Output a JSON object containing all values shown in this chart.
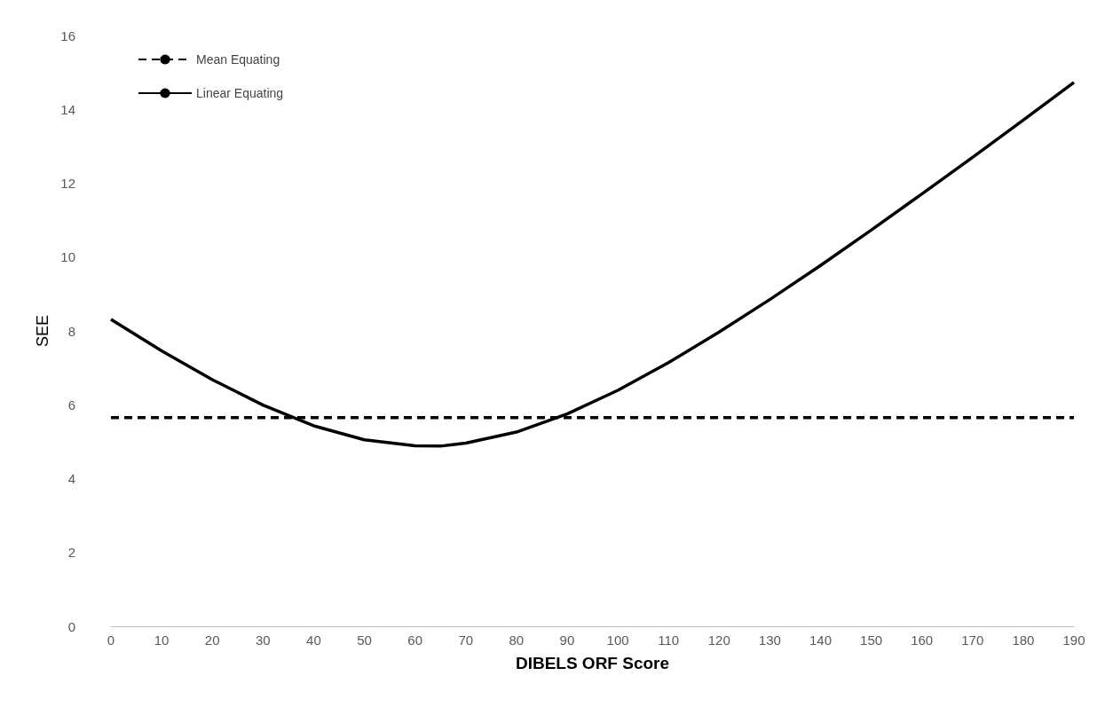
{
  "chart_data": {
    "type": "line",
    "xlabel": "DIBELS ORF Score",
    "ylabel": "SEE",
    "xlim": [
      0,
      190
    ],
    "xticks": [
      0,
      10,
      20,
      30,
      40,
      50,
      60,
      70,
      80,
      90,
      100,
      110,
      120,
      130,
      140,
      150,
      160,
      170,
      180,
      190
    ],
    "ylim": [
      0,
      16
    ],
    "yticks": [
      0,
      2,
      4,
      6,
      8,
      10,
      12,
      14,
      16
    ],
    "grid": false,
    "legend": "top left",
    "marker": "none",
    "series": [
      {
        "name": "Mean Equating",
        "color": "#000000",
        "line_style": "dashed",
        "x": [
          0,
          190
        ],
        "values": [
          5.65,
          5.65
        ]
      },
      {
        "name": "Linear Equating",
        "color": "#000000",
        "line_style": "solid",
        "x": [
          0,
          10,
          20,
          30,
          40,
          50,
          60,
          65,
          70,
          80,
          90,
          100,
          110,
          120,
          130,
          140,
          150,
          160,
          170,
          180,
          190
        ],
        "values": [
          8.31,
          7.46,
          6.68,
          5.99,
          5.43,
          5.05,
          4.89,
          4.88,
          4.96,
          5.26,
          5.75,
          6.39,
          7.14,
          7.97,
          8.85,
          9.77,
          10.73,
          11.71,
          12.7,
          13.71,
          14.73
        ]
      }
    ]
  }
}
